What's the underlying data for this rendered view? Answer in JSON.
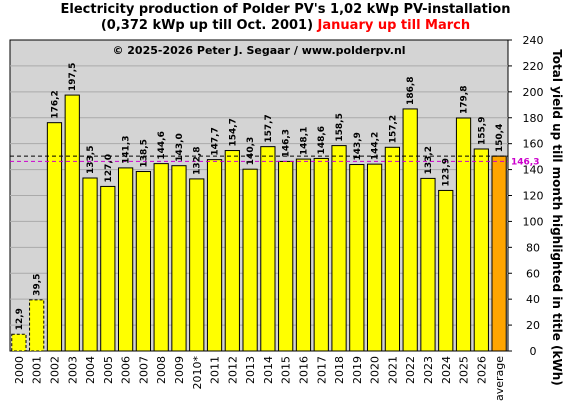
{
  "title_line1": "Electricity production  of Polder PV's 1,02 kWp PV-installation",
  "title_line2_main": "(0,372 kWp up till Oct. 2001) ",
  "title_line2_highlight": "January up till March",
  "copyright": "© 2025-2026 Peter J. Segaar / www.polderpv.nl",
  "colors": {
    "plot_bg": "#d4d4d4",
    "bar_fill": "#ffff00",
    "average_fill": "#ffa500",
    "highlight_text": "#ff0000",
    "avg_ref_color": "#cc00cc"
  },
  "chart_data": {
    "type": "bar",
    "categories": [
      "2000",
      "2001",
      "2002",
      "2003",
      "2004",
      "2005",
      "2006",
      "2007",
      "2008",
      "2009",
      "2010*",
      "2011",
      "2012",
      "2013",
      "2014",
      "2015",
      "2016",
      "2017",
      "2018",
      "2019",
      "2020",
      "2021",
      "2022",
      "2023",
      "2024",
      "2025",
      "2026",
      "average"
    ],
    "values": [
      12.9,
      39.5,
      176.2,
      197.5,
      133.5,
      127.0,
      141.3,
      138.5,
      144.6,
      143.0,
      132.8,
      147.7,
      154.7,
      140.3,
      157.7,
      146.3,
      148.1,
      148.6,
      158.5,
      143.9,
      144.2,
      157.2,
      186.8,
      133.2,
      123.9,
      179.8,
      155.9,
      150.4
    ],
    "value_labels": [
      "12,9",
      "39,5",
      "176,2",
      "197,5",
      "133,5",
      "127,0",
      "141,3",
      "138,5",
      "144,6",
      "143,0",
      "132,8",
      "147,7",
      "154,7",
      "140,3",
      "157,7",
      "146,3",
      "148,1",
      "148,6",
      "158,5",
      "143,9",
      "144,2",
      "157,2",
      "186,8",
      "133,2",
      "123,9",
      "179,8",
      "155,9",
      "150,4"
    ],
    "dashed_bars": [
      "2000",
      "2001"
    ],
    "highlighted_bar": "average",
    "reference_line": {
      "value": 146.3,
      "label": "146,3"
    },
    "average_line_value": 150.4,
    "ylabel": "Total yield up till month highlighted in title (kWh)",
    "ylim": [
      0,
      240
    ],
    "yticks": [
      0,
      20,
      40,
      60,
      80,
      100,
      120,
      140,
      160,
      180,
      200,
      220,
      240
    ],
    "grid": true
  }
}
